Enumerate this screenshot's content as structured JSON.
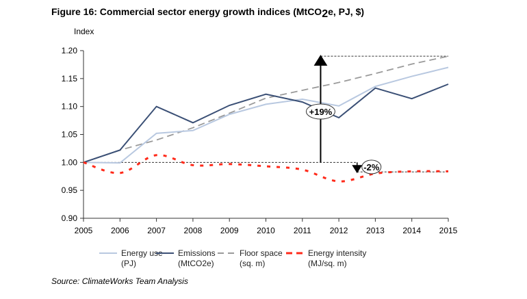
{
  "title": "Figure 16: Commercial sector energy growth indices (MtCO2e, PJ, $)",
  "source": "Source: ClimateWorks Team Analysis",
  "chart_data": {
    "type": "line",
    "title": "Figure 16: Commercial sector energy growth indices (MtCO2e, PJ, $)",
    "ylabel": "Index",
    "xlabel": "",
    "ylim": [
      0.9,
      1.2
    ],
    "yticks": [
      "0.90",
      "0.95",
      "1.00",
      "1.05",
      "1.10",
      "1.15",
      "1.20"
    ],
    "x": [
      "2005",
      "2006",
      "2007",
      "2008",
      "2009",
      "2010",
      "2011",
      "2012",
      "2013",
      "2014",
      "2015"
    ],
    "grid": false,
    "legend_placement": "bottom",
    "series": [
      {
        "name": "Energy use",
        "unit": "(PJ)",
        "color": "#b8c8e0",
        "style": "solid",
        "values": [
          1.0,
          0.999,
          1.052,
          1.057,
          1.086,
          1.104,
          1.113,
          1.101,
          1.136,
          1.154,
          1.17
        ]
      },
      {
        "name": "Emissions",
        "unit": "(MtCO2e)",
        "color": "#3a4f75",
        "style": "solid",
        "values": [
          1.0,
          1.022,
          1.1,
          1.071,
          1.102,
          1.122,
          1.108,
          1.08,
          1.133,
          1.114,
          1.14
        ]
      },
      {
        "name": "Floor space",
        "unit": "(sq. m)",
        "color": "#9a9a9a",
        "style": "dashed",
        "values": [
          1.0,
          1.022,
          1.04,
          1.062,
          1.088,
          1.115,
          1.129,
          1.143,
          1.159,
          1.176,
          1.19
        ]
      },
      {
        "name": "Energy intensity",
        "unit": "(MJ/sq. m)",
        "color": "#ff2a1a",
        "style": "dashed",
        "values": [
          1.0,
          0.981,
          1.013,
          0.995,
          0.997,
          0.993,
          0.987,
          0.966,
          0.98,
          0.984,
          0.984
        ]
      }
    ],
    "annotations": [
      {
        "text": "+19%",
        "x": 2011.5,
        "from": 1.0,
        "to": 1.19
      },
      {
        "text": "-2%",
        "x": 2012.5,
        "from": 1.0,
        "to": 0.983
      }
    ]
  }
}
